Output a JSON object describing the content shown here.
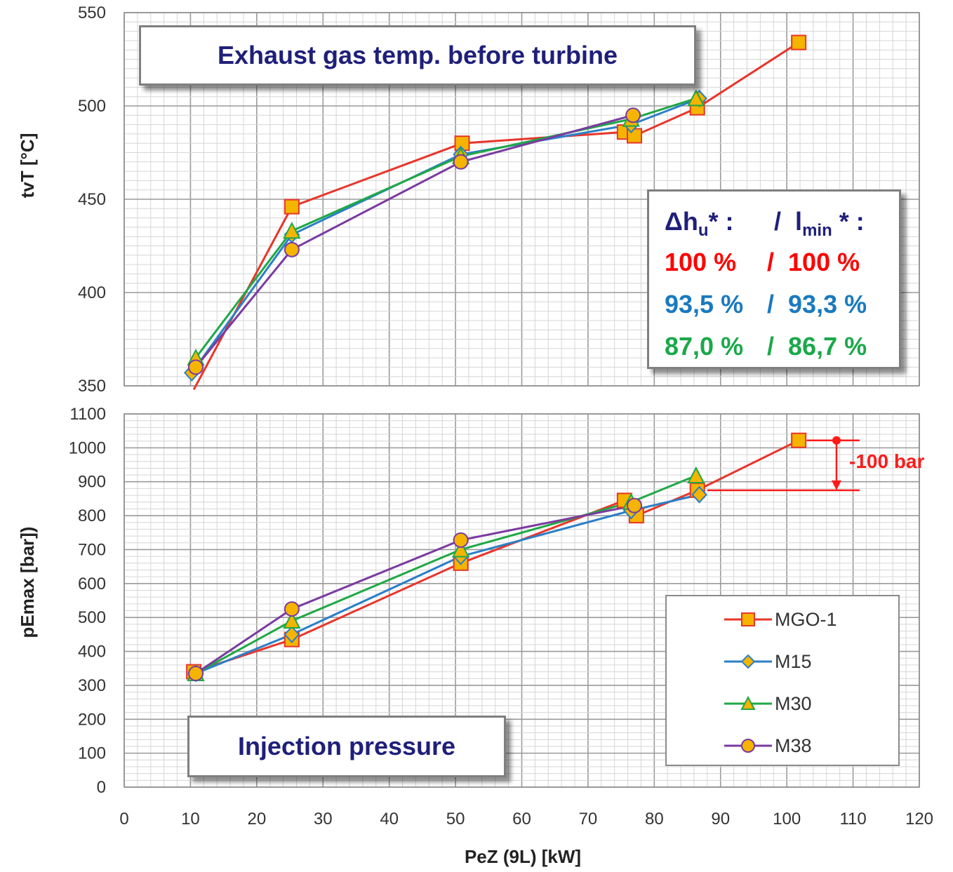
{
  "chart_data": [
    {
      "type": "line",
      "title": "Exhaust gas temp. before turbine",
      "ylabel": "tvT [°C]",
      "xlim": [
        0,
        120
      ],
      "ylim": [
        350,
        550
      ],
      "y_ticks": [
        350,
        400,
        450,
        500,
        550
      ],
      "grid": true,
      "series": [
        {
          "name": "MGO-1",
          "points": [
            [
              10.5,
              348
            ],
            [
              25.3,
              446
            ],
            [
              51.0,
              480
            ],
            [
              75.5,
              486
            ],
            [
              77.0,
              484
            ],
            [
              86.5,
              499
            ],
            [
              101.8,
              534
            ]
          ]
        },
        {
          "name": "M15",
          "points": [
            [
              10.2,
              357
            ],
            [
              25.3,
              431
            ],
            [
              50.8,
              474
            ],
            [
              76.5,
              490
            ],
            [
              86.8,
              504
            ]
          ]
        },
        {
          "name": "M30",
          "points": [
            [
              10.8,
              365
            ],
            [
              25.3,
              433
            ],
            [
              50.8,
              473
            ],
            [
              76.5,
              493
            ],
            [
              86.3,
              504
            ]
          ]
        },
        {
          "name": "M38",
          "points": [
            [
              10.8,
              360
            ],
            [
              25.3,
              423
            ],
            [
              50.8,
              470
            ],
            [
              76.8,
              495
            ]
          ]
        }
      ]
    },
    {
      "type": "line",
      "title": "Injection pressure",
      "xlabel": "PeZ (9L) [kW]",
      "ylabel": "pEmax [bar])",
      "xlim": [
        0,
        120
      ],
      "ylim": [
        0,
        1100
      ],
      "x_ticks": [
        0,
        10,
        20,
        30,
        40,
        50,
        60,
        70,
        80,
        90,
        100,
        110,
        120
      ],
      "y_ticks": [
        0,
        100,
        200,
        300,
        400,
        500,
        600,
        700,
        800,
        900,
        1000,
        1100
      ],
      "grid": true,
      "legend": "bottom-right",
      "series": [
        {
          "name": "MGO-1",
          "points": [
            [
              10.5,
              340
            ],
            [
              25.3,
              435
            ],
            [
              50.8,
              660
            ],
            [
              75.5,
              845
            ],
            [
              77.3,
              800
            ],
            [
              86.5,
              875
            ],
            [
              101.8,
              1022
            ]
          ]
        },
        {
          "name": "M15",
          "points": [
            [
              10.8,
              335
            ],
            [
              25.3,
              450
            ],
            [
              50.8,
              680
            ],
            [
              76.5,
              815
            ],
            [
              86.8,
              862
            ]
          ]
        },
        {
          "name": "M30",
          "points": [
            [
              10.8,
              335
            ],
            [
              25.3,
              490
            ],
            [
              50.8,
              700
            ],
            [
              76.5,
              840
            ],
            [
              86.3,
              918
            ]
          ]
        },
        {
          "name": "M38",
          "points": [
            [
              10.8,
              335
            ],
            [
              25.3,
              525
            ],
            [
              50.8,
              728
            ],
            [
              77.0,
              830
            ]
          ]
        }
      ],
      "annotation": {
        "label": "-100 bar",
        "from": 1022,
        "to": 875,
        "x": 107.5
      }
    }
  ],
  "series_colors": {
    "MGO-1": "#e8352a",
    "M15": "#2a7fc8",
    "M30": "#1fa845",
    "M38": "#7b3aa0"
  },
  "marker_fill": "#f4b400",
  "info_box": {
    "header_a": "Δh",
    "header_a_sub": "u",
    "header_a_sup": "* :",
    "header_sep": "/",
    "header_b": "l",
    "header_b_sub": "min",
    "header_b_sup": " * :",
    "rows": [
      {
        "a": "100 %",
        "sep": "/",
        "b": "100 %",
        "color": "#ff0000"
      },
      {
        "a": "93,5 %",
        "sep": "/",
        "b": "93,3 %",
        "color": "#1a7ac0"
      },
      {
        "a": "87,0 %",
        "sep": "/",
        "b": "86,7 %",
        "color": "#1ba84a"
      }
    ]
  },
  "legend": [
    {
      "name": "MGO-1",
      "marker": "square"
    },
    {
      "name": "M15",
      "marker": "diamond"
    },
    {
      "name": "M30",
      "marker": "triangle"
    },
    {
      "name": "M38",
      "marker": "circle"
    }
  ]
}
